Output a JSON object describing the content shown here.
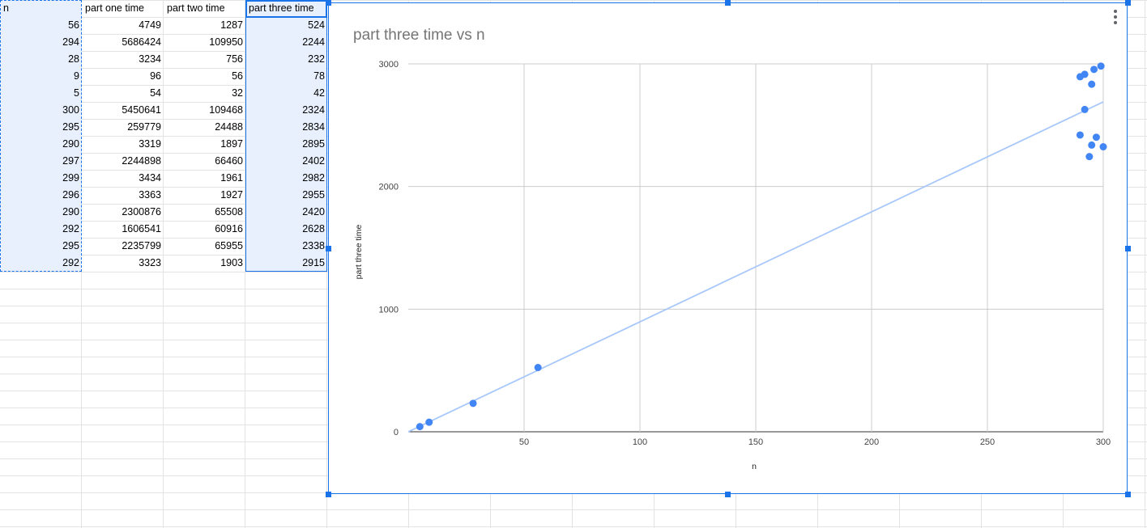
{
  "sheet": {
    "headers": [
      "n",
      "part one time",
      "part two time",
      "part three time"
    ],
    "rows": [
      [
        "56",
        "4749",
        "1287",
        "524"
      ],
      [
        "294",
        "5686424",
        "109950",
        "2244"
      ],
      [
        "28",
        "3234",
        "756",
        "232"
      ],
      [
        "9",
        "96",
        "56",
        "78"
      ],
      [
        "5",
        "54",
        "32",
        "42"
      ],
      [
        "300",
        "5450641",
        "109468",
        "2324"
      ],
      [
        "295",
        "259779",
        "24488",
        "2834"
      ],
      [
        "290",
        "3319",
        "1897",
        "2895"
      ],
      [
        "297",
        "2244898",
        "66460",
        "2402"
      ],
      [
        "299",
        "3434",
        "1961",
        "2982"
      ],
      [
        "296",
        "3363",
        "1927",
        "2955"
      ],
      [
        "290",
        "2300876",
        "65508",
        "2420"
      ],
      [
        "292",
        "1606541",
        "60916",
        "2628"
      ],
      [
        "295",
        "2235799",
        "65955",
        "2338"
      ],
      [
        "292",
        "3323",
        "1903",
        "2915"
      ]
    ]
  },
  "colors": {
    "point": "#4285f4",
    "trendline": "#a8c7fa",
    "gridline": "#cccccc",
    "selection": "#1a73e8",
    "selection_fill": "#e8f0fd"
  },
  "chart_data": {
    "type": "scatter",
    "title": "part three time vs n",
    "xlabel": "n",
    "ylabel": "part three time",
    "xlim": [
      0,
      300
    ],
    "ylim": [
      0,
      3000
    ],
    "x_ticks": [
      50,
      100,
      150,
      200,
      250,
      300
    ],
    "y_ticks": [
      0,
      1000,
      2000,
      3000
    ],
    "grid": true,
    "legend": "none",
    "trendline": {
      "type": "linear",
      "y_at_x0": 0,
      "y_at_x300": 2690
    },
    "series": [
      {
        "points": [
          [
            56,
            524
          ],
          [
            294,
            2244
          ],
          [
            28,
            232
          ],
          [
            9,
            78
          ],
          [
            5,
            42
          ],
          [
            300,
            2324
          ],
          [
            295,
            2834
          ],
          [
            290,
            2895
          ],
          [
            297,
            2402
          ],
          [
            299,
            2982
          ],
          [
            296,
            2955
          ],
          [
            290,
            2420
          ],
          [
            292,
            2628
          ],
          [
            295,
            2338
          ],
          [
            292,
            2915
          ]
        ]
      }
    ]
  }
}
